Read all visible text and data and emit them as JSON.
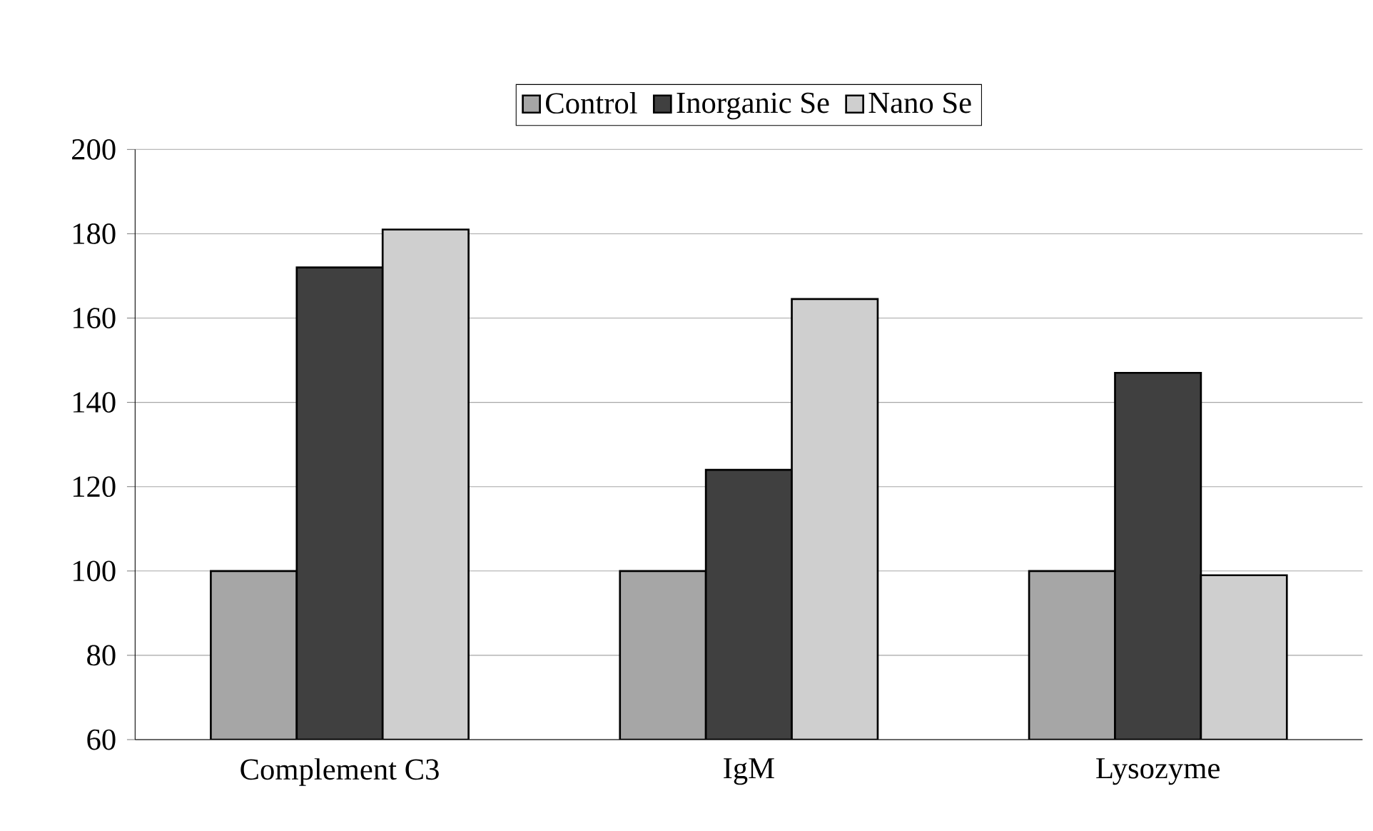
{
  "chart_data": {
    "type": "bar",
    "categories": [
      "Complement C3",
      "IgM",
      "Lysozyme"
    ],
    "series": [
      {
        "name": "Control",
        "color": "#a6a6a6",
        "values": [
          100,
          100,
          100
        ]
      },
      {
        "name": "Inorganic Se",
        "color": "#404040",
        "values": [
          172,
          124,
          147
        ]
      },
      {
        "name": "Nano Se",
        "color": "#cfcfcf",
        "values": [
          181,
          164.5,
          99
        ]
      }
    ],
    "ylim": [
      60,
      200
    ],
    "yticks": [
      60,
      80,
      100,
      120,
      140,
      160,
      180,
      200
    ],
    "grid": "y",
    "legend": "top"
  }
}
